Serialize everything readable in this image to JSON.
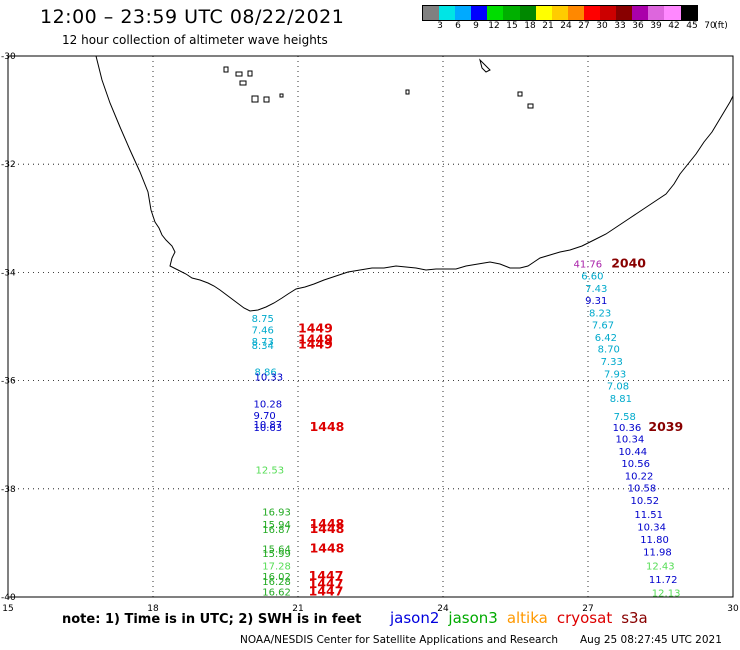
{
  "header": {
    "title": "12:00 – 23:59 UTC 08/22/2021",
    "subtitle": "12 hour collection of altimeter wave heights"
  },
  "colorbar": {
    "colors": [
      "#808080",
      "#00e5e5",
      "#00aaff",
      "#0000ff",
      "#00dd00",
      "#00b000",
      "#008800",
      "#ffff00",
      "#ffcc00",
      "#ff8800",
      "#ff0000",
      "#cc0000",
      "#880000",
      "#aa00aa",
      "#dd66dd",
      "#ff88ff",
      "#000000"
    ],
    "labels": [
      "3",
      "6",
      "9",
      "12",
      "15",
      "18",
      "21",
      "24",
      "27",
      "30",
      "33",
      "36",
      "39",
      "42",
      "45",
      "70",
      "(ft)"
    ]
  },
  "axes": {
    "lat_labels": [
      "-30",
      "-32",
      "-34",
      "-36",
      "-38",
      "-40"
    ],
    "lon_labels": [
      "15",
      "18",
      "21",
      "24",
      "27",
      "30"
    ]
  },
  "note": "note:  1) Time is in UTC;  2) SWH is in feet",
  "legend": [
    {
      "name": "jason2",
      "color": "#0000dd"
    },
    {
      "name": "jason3",
      "color": "#00aa00"
    },
    {
      "name": "altika",
      "color": "#ff9900"
    },
    {
      "name": "cryosat",
      "color": "#dd0000"
    },
    {
      "name": "s3a",
      "color": "#880000"
    }
  ],
  "footer": {
    "credit": "NOAA/NESDIS Center for Satellite Applications and Research",
    "timestamp": "Aug 25 08:27:45 UTC 2021"
  },
  "observations": [
    {
      "text": "8.75",
      "lon": 20.04,
      "lat": -34.84,
      "color": "#00aacc"
    },
    {
      "text": "7.46",
      "lon": 20.04,
      "lat": -35.06,
      "color": "#00aacc"
    },
    {
      "text": "8.73",
      "lon": 20.04,
      "lat": -35.27,
      "color": "#00aacc"
    },
    {
      "text": "8.34",
      "lon": 20.04,
      "lat": -35.34,
      "color": "#00aacc"
    },
    {
      "text": "8.86",
      "lon": 20.1,
      "lat": -35.83,
      "color": "#00aacc"
    },
    {
      "text": "10.33",
      "lon": 20.1,
      "lat": -35.92,
      "color": "#0000cc"
    },
    {
      "text": "10.28",
      "lon": 20.08,
      "lat": -36.42,
      "color": "#0000cc"
    },
    {
      "text": "9.70",
      "lon": 20.08,
      "lat": -36.64,
      "color": "#0000cc"
    },
    {
      "text": "10.87",
      "lon": 20.08,
      "lat": -36.8,
      "color": "#0000cc"
    },
    {
      "text": "10.63",
      "lon": 20.08,
      "lat": -36.86,
      "color": "#0000cc"
    },
    {
      "text": "12.53",
      "lon": 20.12,
      "lat": -37.64,
      "color": "#55dd55"
    },
    {
      "text": "16.93",
      "lon": 20.26,
      "lat": -38.42,
      "color": "#22aa22"
    },
    {
      "text": "15.94",
      "lon": 20.26,
      "lat": -38.65,
      "color": "#22aa22"
    },
    {
      "text": "16.87",
      "lon": 20.26,
      "lat": -38.74,
      "color": "#22aa22"
    },
    {
      "text": "15.64",
      "lon": 20.26,
      "lat": -39.1,
      "color": "#22aa22"
    },
    {
      "text": "15.99",
      "lon": 20.26,
      "lat": -39.19,
      "color": "#22aa22"
    },
    {
      "text": "17.28",
      "lon": 20.26,
      "lat": -39.42,
      "color": "#55dd55"
    },
    {
      "text": "16.02",
      "lon": 20.26,
      "lat": -39.61,
      "color": "#22aa22"
    },
    {
      "text": "16.28",
      "lon": 20.26,
      "lat": -39.7,
      "color": "#22aa22"
    },
    {
      "text": "16.62",
      "lon": 20.26,
      "lat": -39.9,
      "color": "#22aa22"
    },
    {
      "text": "1449",
      "lon": 21.0,
      "lat": -35.04,
      "color": "#dd0000",
      "bold": true
    },
    {
      "text": "1449",
      "lon": 21.0,
      "lat": -35.24,
      "color": "#dd0000",
      "bold": true
    },
    {
      "text": "1449",
      "lon": 21.0,
      "lat": -35.33,
      "color": "#dd0000",
      "bold": true
    },
    {
      "text": "1448",
      "lon": 21.24,
      "lat": -36.86,
      "color": "#dd0000",
      "bold": true
    },
    {
      "text": "1448",
      "lon": 21.24,
      "lat": -38.65,
      "color": "#dd0000",
      "bold": true
    },
    {
      "text": "1448",
      "lon": 21.24,
      "lat": -38.74,
      "color": "#dd0000",
      "bold": true
    },
    {
      "text": "1448",
      "lon": 21.24,
      "lat": -39.1,
      "color": "#dd0000",
      "bold": true
    },
    {
      "text": "1447",
      "lon": 21.22,
      "lat": -39.61,
      "color": "#dd0000",
      "bold": true
    },
    {
      "text": "1447",
      "lon": 21.22,
      "lat": -39.76,
      "color": "#dd0000",
      "bold": true
    },
    {
      "text": "1447",
      "lon": 21.22,
      "lat": -39.9,
      "color": "#dd0000",
      "bold": true
    },
    {
      "text": "41.76",
      "lon": 26.7,
      "lat": -33.84,
      "color": "#aa22aa"
    },
    {
      "text": "6.60",
      "lon": 26.86,
      "lat": -34.06,
      "color": "#00aacc"
    },
    {
      "text": "2040",
      "lon": 27.48,
      "lat": -33.84,
      "color": "#880000",
      "bold": true
    },
    {
      "text": "7.43",
      "lon": 26.94,
      "lat": -34.29,
      "color": "#00aacc"
    },
    {
      "text": "9.31",
      "lon": 26.94,
      "lat": -34.51,
      "color": "#0000cc"
    },
    {
      "text": "8.23",
      "lon": 27.02,
      "lat": -34.74,
      "color": "#00aacc"
    },
    {
      "text": "7.67",
      "lon": 27.08,
      "lat": -34.96,
      "color": "#00aacc"
    },
    {
      "text": "6.42",
      "lon": 27.14,
      "lat": -35.19,
      "color": "#00aacc"
    },
    {
      "text": "8.70",
      "lon": 27.2,
      "lat": -35.41,
      "color": "#00aacc"
    },
    {
      "text": "7.33",
      "lon": 27.26,
      "lat": -35.64,
      "color": "#00aacc"
    },
    {
      "text": "7.93",
      "lon": 27.33,
      "lat": -35.87,
      "color": "#00aacc"
    },
    {
      "text": "7.08",
      "lon": 27.39,
      "lat": -36.09,
      "color": "#00aacc"
    },
    {
      "text": "8.81",
      "lon": 27.45,
      "lat": -36.32,
      "color": "#00aacc"
    },
    {
      "text": "7.58",
      "lon": 27.53,
      "lat": -36.65,
      "color": "#00aacc"
    },
    {
      "text": "10.36",
      "lon": 27.51,
      "lat": -36.86,
      "color": "#0000cc"
    },
    {
      "text": "2039",
      "lon": 28.25,
      "lat": -36.86,
      "color": "#880000",
      "bold": true
    },
    {
      "text": "10.34",
      "lon": 27.57,
      "lat": -37.07,
      "color": "#0000cc"
    },
    {
      "text": "10.44",
      "lon": 27.63,
      "lat": -37.3,
      "color": "#0000cc"
    },
    {
      "text": "10.56",
      "lon": 27.69,
      "lat": -37.52,
      "color": "#0000cc"
    },
    {
      "text": "10.22",
      "lon": 27.76,
      "lat": -37.75,
      "color": "#0000cc"
    },
    {
      "text": "10.58",
      "lon": 27.82,
      "lat": -37.98,
      "color": "#0000cc"
    },
    {
      "text": "10.52",
      "lon": 27.88,
      "lat": -38.21,
      "color": "#0000cc"
    },
    {
      "text": "11.51",
      "lon": 27.96,
      "lat": -38.47,
      "color": "#0000cc"
    },
    {
      "text": "10.34",
      "lon": 28.02,
      "lat": -38.7,
      "color": "#0000cc"
    },
    {
      "text": "11.80",
      "lon": 28.08,
      "lat": -38.93,
      "color": "#0000cc"
    },
    {
      "text": "11.98",
      "lon": 28.14,
      "lat": -39.16,
      "color": "#0000cc"
    },
    {
      "text": "12.43",
      "lon": 28.2,
      "lat": -39.42,
      "color": "#55dd55"
    },
    {
      "text": "11.72",
      "lon": 28.26,
      "lat": -39.67,
      "color": "#0000cc"
    },
    {
      "text": "12.13",
      "lon": 28.32,
      "lat": -39.92,
      "color": "#55dd55"
    }
  ]
}
